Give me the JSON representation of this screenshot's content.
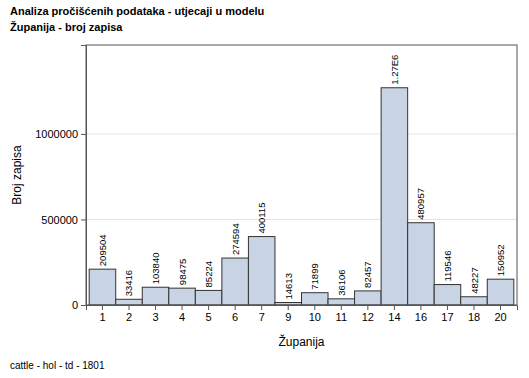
{
  "chart_data": {
    "type": "bar",
    "title": "Analiza pročišćenih podataka - utjecaji u modelu",
    "subtitle": "Županija - broj zapisa",
    "x_label": "Županija",
    "y_label": "Broj zapisa",
    "footnote": "cattle - hol - td - 1801",
    "categories": [
      "1",
      "2",
      "3",
      "4",
      "5",
      "6",
      "7",
      "9",
      "10",
      "11",
      "12",
      "14",
      "16",
      "17",
      "18",
      "20"
    ],
    "values": [
      209504,
      33416,
      103840,
      98475,
      85224,
      274594,
      400115,
      14613,
      71899,
      36106,
      82457,
      1270000,
      480957,
      119546,
      48227,
      150952
    ],
    "value_labels": [
      "209504",
      "33416",
      "103840",
      "98475",
      "85224",
      "274594",
      "400115",
      "14613",
      "71899",
      "36106",
      "82457",
      "1.27E6",
      "480957",
      "119546",
      "48227",
      "150952"
    ],
    "data_labels": true,
    "color": "#c8d4e3",
    "ylim": [
      0,
      1520000
    ],
    "yticks": [
      0,
      500000,
      1000000
    ],
    "grid": true
  }
}
